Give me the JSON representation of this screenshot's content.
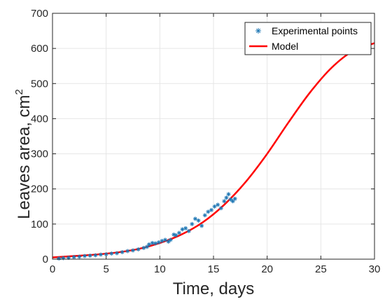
{
  "chart_data": {
    "type": "line",
    "xlabel": "Time, days",
    "ylabel": "Leaves area, cm",
    "ylabel_superscript": "2",
    "xlim": [
      0,
      30
    ],
    "ylim": [
      0,
      700
    ],
    "x_ticks": [
      0,
      5,
      10,
      15,
      20,
      25,
      30
    ],
    "y_ticks": [
      0,
      100,
      200,
      300,
      400,
      500,
      600,
      700
    ],
    "grid": true,
    "legend_position": "top-right",
    "colors": {
      "points": "#1f77b4",
      "model": "#ff0000",
      "grid": "#e6e6e6",
      "axis": "#262626"
    },
    "series": [
      {
        "name": "Experimental points",
        "kind": "scatter",
        "marker": "asterisk",
        "x": [
          0.6,
          1.0,
          1.5,
          2.0,
          2.5,
          3.0,
          3.5,
          4.0,
          4.5,
          5.0,
          5.5,
          6.0,
          6.5,
          7.0,
          7.5,
          8.0,
          8.5,
          8.8,
          9.0,
          9.3,
          9.6,
          9.9,
          10.2,
          10.5,
          10.8,
          11.0,
          11.3,
          11.5,
          11.8,
          12.1,
          12.4,
          12.7,
          13.0,
          13.3,
          13.6,
          13.9,
          14.2,
          14.5,
          14.8,
          15.1,
          15.4,
          15.7,
          16.0,
          16.2,
          16.4,
          16.6,
          16.8,
          17.0
        ],
        "y": [
          2,
          3,
          4,
          6,
          7,
          9,
          10,
          11,
          13,
          14,
          16,
          17,
          20,
          23,
          25,
          28,
          32,
          35,
          42,
          46,
          45,
          48,
          52,
          55,
          50,
          55,
          70,
          68,
          75,
          85,
          88,
          80,
          100,
          115,
          110,
          95,
          125,
          135,
          140,
          150,
          155,
          145,
          165,
          175,
          185,
          170,
          165,
          172
        ]
      },
      {
        "name": "Model",
        "kind": "line",
        "x": [
          0,
          2,
          4,
          6,
          8,
          10,
          12,
          14,
          16,
          18,
          20,
          22,
          24,
          26,
          28,
          30
        ],
        "y": [
          5,
          9,
          13,
          19,
          29,
          46,
          70,
          105,
          155,
          220,
          300,
          390,
          475,
          545,
          593,
          615
        ]
      }
    ]
  }
}
